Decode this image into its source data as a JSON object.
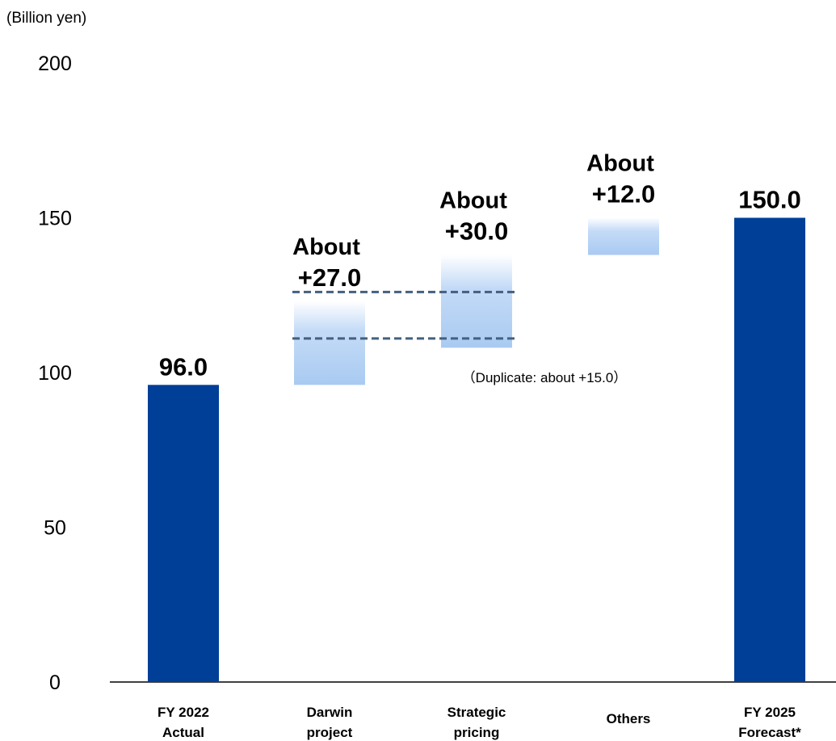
{
  "chart_data": {
    "type": "bar",
    "subtype": "waterfall",
    "unit_label": "(Billion yen)",
    "ylim": [
      0,
      200
    ],
    "yticks": [
      0,
      50,
      100,
      150,
      200
    ],
    "grid": false,
    "colors": {
      "total": "#003f98",
      "step_light": "#d8e8fb",
      "step_dark": "#a7c9f2",
      "dash": "#44607f"
    },
    "categories": [
      {
        "lines": [
          "FY 2022",
          "Actual"
        ]
      },
      {
        "lines": [
          "Darwin",
          "project"
        ]
      },
      {
        "lines": [
          "Strategic",
          "pricing"
        ]
      },
      {
        "lines": [
          "Others"
        ]
      },
      {
        "lines": [
          "FY 2025",
          "Forecast*"
        ]
      }
    ],
    "bars": [
      {
        "kind": "total",
        "base": 0,
        "value": 96.0,
        "label": [
          "96.0"
        ]
      },
      {
        "kind": "step",
        "base": 96,
        "value": 27.0,
        "label": [
          "About",
          "+27.0"
        ]
      },
      {
        "kind": "step",
        "base": 108,
        "value": 30.0,
        "label": [
          "About",
          "+30.0"
        ]
      },
      {
        "kind": "step",
        "base": 138,
        "value": 12.0,
        "label": [
          "About",
          "+12.0"
        ]
      },
      {
        "kind": "total",
        "base": 0,
        "value": 150.0,
        "label": [
          "150.0"
        ]
      }
    ],
    "duplicate": {
      "from": 111,
      "to": 126,
      "note": "（Duplicate: about +15.0）"
    }
  }
}
